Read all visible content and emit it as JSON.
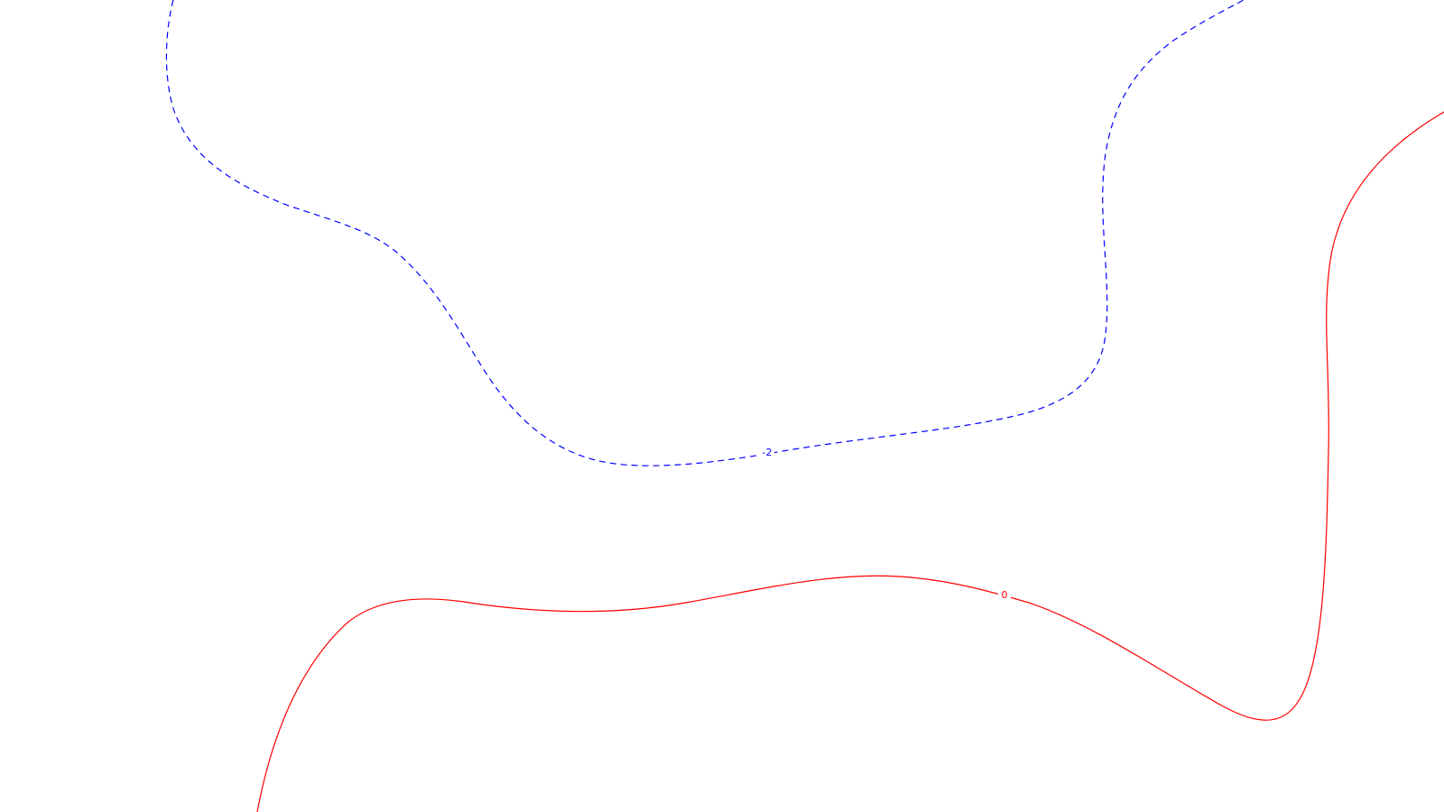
{
  "map": {
    "background_color": "#ffffff",
    "contours": [
      {
        "id": "contour-minus-2",
        "label": "-2",
        "value": -2,
        "color": "#0000ff",
        "line_style": "dashed"
      },
      {
        "id": "contour-0",
        "label": "0",
        "value": 0,
        "color": "#ff0000",
        "line_style": "solid"
      }
    ]
  }
}
